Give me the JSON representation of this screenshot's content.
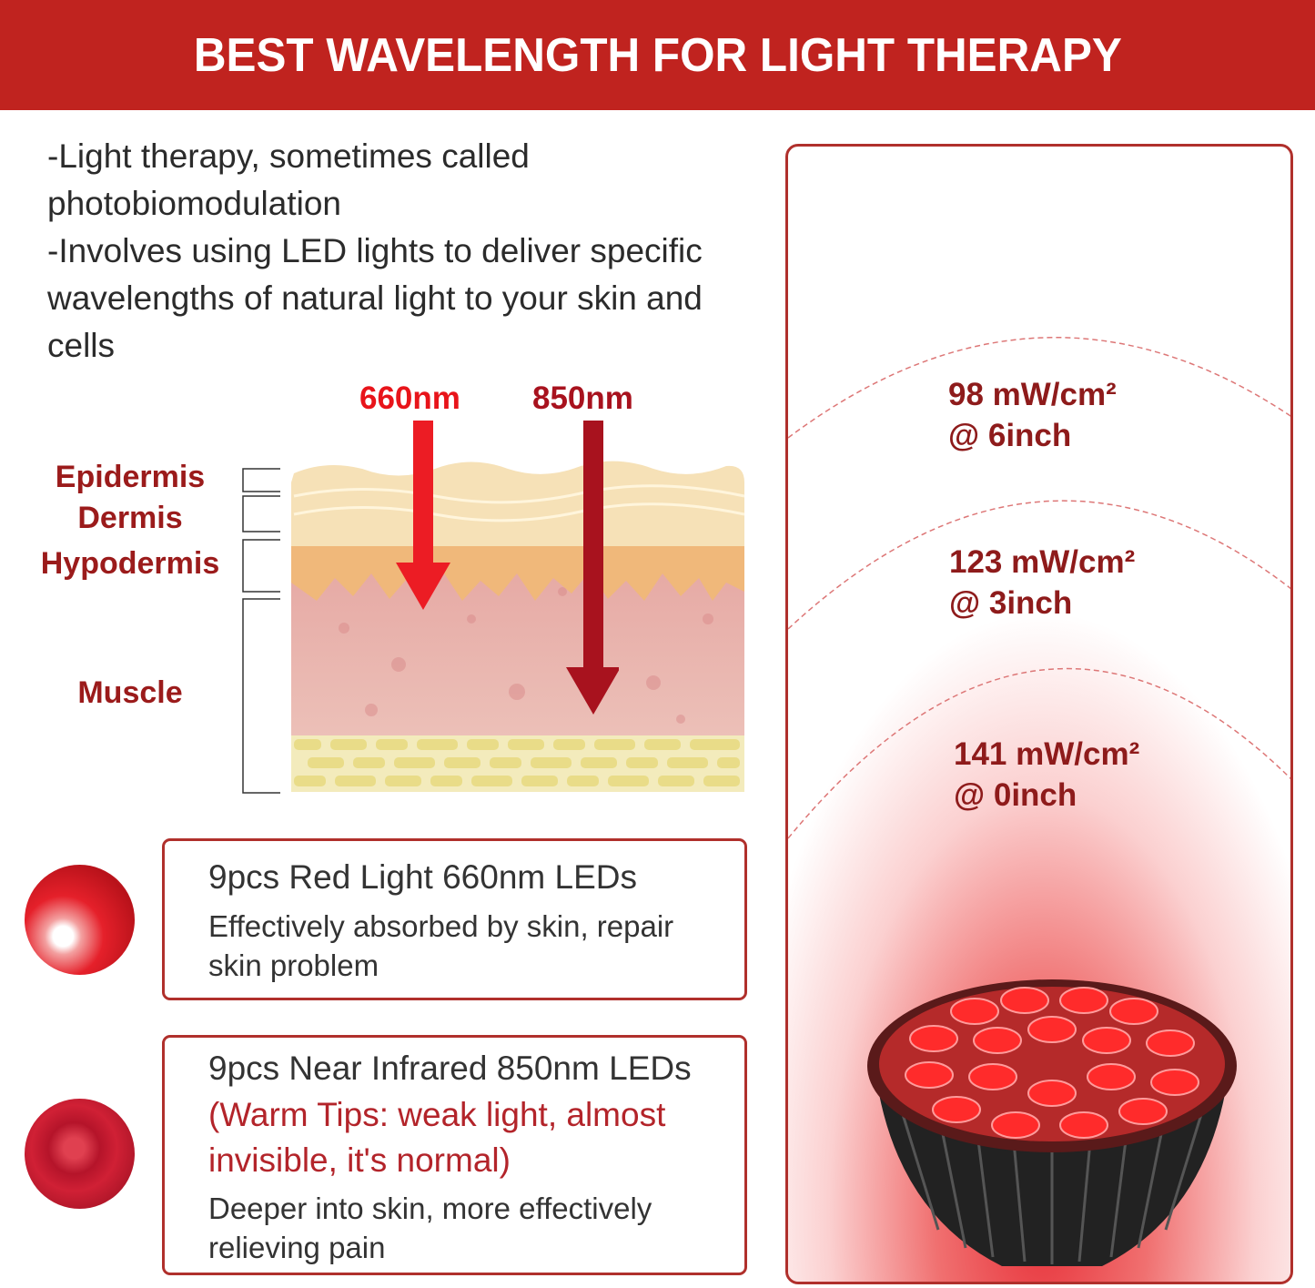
{
  "header": {
    "title": "BEST WAVELENGTH FOR LIGHT THERAPY"
  },
  "intro": {
    "lines": [
      "-Light therapy, sometimes called photobiomodulation",
      "-Involves using LED lights to deliver specific wavelengths of natural light to your skin and cells"
    ]
  },
  "diagram": {
    "wavelengths": [
      {
        "label": "660nm",
        "color": "#e8141a"
      },
      {
        "label": "850nm",
        "color": "#a8121e"
      }
    ],
    "layers": [
      "Epidermis",
      "Dermis",
      "Hypodermis",
      "Muscle"
    ]
  },
  "leds": [
    {
      "title": "9pcs Red Light 660nm LEDs",
      "tip": "",
      "desc": "Effectively absorbed by skin, repair skin problem"
    },
    {
      "title": "9pcs Near Infrared 850nm LEDs",
      "tip": "(Warm Tips: weak light, almost invisible, it's normal)",
      "desc": "Deeper into skin, more effectively relieving pain"
    }
  ],
  "irradiance": [
    {
      "power": "98 mW/cm²",
      "distance": "@ 6inch"
    },
    {
      "power": "123 mW/cm²",
      "distance": "@ 3inch"
    },
    {
      "power": "141 mW/cm²",
      "distance": "@ 0inch"
    }
  ],
  "colors": {
    "brand": "#c0231f",
    "label": "#9b1b1b"
  }
}
